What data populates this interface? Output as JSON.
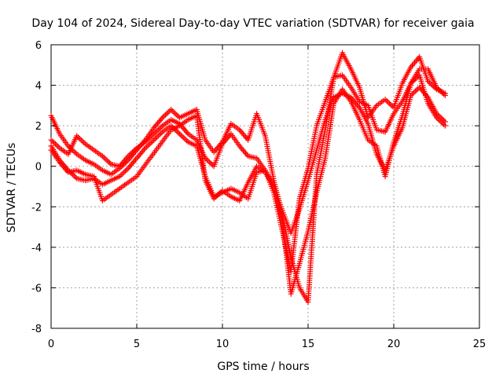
{
  "chart_data": {
    "type": "scatter",
    "title": "Day 104 of 2024, Sidereal Day-to-day VTEC variation (SDTVAR) for receiver gaia",
    "xlabel": "GPS time / hours",
    "ylabel": "SDTVAR / TECUs",
    "xlim": [
      0,
      25
    ],
    "ylim": [
      -8,
      6
    ],
    "x_ticks": [
      0,
      5,
      10,
      15,
      20,
      25
    ],
    "y_ticks": [
      -8,
      -6,
      -4,
      -2,
      0,
      2,
      4,
      6
    ],
    "x_tick_labels": [
      "0",
      "5",
      "10",
      "15",
      "20",
      "25"
    ],
    "y_tick_labels": [
      "-8",
      "-6",
      "-4",
      "-2",
      "0",
      "2",
      "4",
      "6"
    ],
    "grid": true,
    "marker": "+",
    "color": "#ff0000",
    "series": [
      {
        "x": [
          0.0,
          0.5,
          1.0,
          1.5,
          2.0,
          2.5,
          3.0,
          3.5,
          4.0,
          4.5,
          5.0,
          5.5,
          6.0,
          6.5,
          7.0,
          7.5,
          8.0,
          8.5,
          9.0,
          9.5,
          10.0,
          10.5,
          11.0,
          11.5,
          12.0,
          12.5,
          13.0,
          13.5,
          14.0,
          14.5,
          15.0,
          15.5,
          16.0,
          16.5,
          17.0,
          17.5,
          18.0,
          18.5,
          19.0,
          19.5,
          20.0,
          20.5,
          21.0,
          21.5,
          22.0,
          22.5,
          23.0
        ],
        "y": [
          2.5,
          1.6,
          1.0,
          0.6,
          0.3,
          0.1,
          -0.2,
          -0.4,
          -0.1,
          0.3,
          0.8,
          1.3,
          1.9,
          2.4,
          2.8,
          2.4,
          2.6,
          2.8,
          1.3,
          0.7,
          1.2,
          2.1,
          1.8,
          1.3,
          2.6,
          1.5,
          -0.7,
          -2.4,
          -4.5,
          -6.0,
          -6.7,
          -0.4,
          1.8,
          4.4,
          5.6,
          4.8,
          3.9,
          2.4,
          3.0,
          3.3,
          2.9,
          4.1,
          4.9,
          5.4,
          4.2,
          3.8,
          3.6
        ]
      },
      {
        "x": [
          0.0,
          0.5,
          1.0,
          1.5,
          2.0,
          2.5,
          3.0,
          3.5,
          4.0,
          4.5,
          5.0,
          5.5,
          6.0,
          6.5,
          7.0,
          7.5,
          8.0,
          8.5,
          9.0,
          9.5,
          10.0,
          10.5,
          11.0,
          11.5,
          12.0,
          12.5,
          13.0,
          13.5,
          14.0,
          14.5,
          15.0,
          15.5,
          16.0,
          16.5,
          17.0,
          17.5,
          18.0,
          18.5,
          19.0,
          19.5,
          20.0,
          20.5,
          21.0,
          21.5,
          22.0,
          22.5,
          23.0
        ],
        "y": [
          1.3,
          0.9,
          0.6,
          1.5,
          1.1,
          0.8,
          0.5,
          0.1,
          0.0,
          0.5,
          0.9,
          1.2,
          1.6,
          2.0,
          2.3,
          2.1,
          1.6,
          1.3,
          0.4,
          0.0,
          1.1,
          1.6,
          1.0,
          0.5,
          0.4,
          -0.2,
          -1.3,
          -3.2,
          -5.2,
          -1.6,
          -0.1,
          2.0,
          3.2,
          4.4,
          4.5,
          3.9,
          3.2,
          3.0,
          1.8,
          1.7,
          2.6,
          3.2,
          4.1,
          4.8,
          4.8,
          3.9,
          3.5
        ]
      },
      {
        "x": [
          0.0,
          0.5,
          1.0,
          1.5,
          2.0,
          2.5,
          3.0,
          3.5,
          4.0,
          4.5,
          5.0,
          5.5,
          6.0,
          6.5,
          7.0,
          7.5,
          8.0,
          8.5,
          9.0,
          9.5,
          10.0,
          10.5,
          11.0,
          11.5,
          12.0,
          12.5,
          13.0,
          13.5,
          14.0,
          14.5,
          15.0,
          15.5,
          16.0,
          16.5,
          17.0,
          17.5,
          18.0,
          18.5,
          19.0,
          19.5,
          20.0,
          20.5,
          21.0,
          21.5,
          22.0,
          22.5,
          23.0
        ],
        "y": [
          1.0,
          0.3,
          -0.2,
          -0.6,
          -0.7,
          -0.6,
          -0.9,
          -0.7,
          -0.5,
          -0.1,
          0.4,
          0.9,
          1.3,
          1.7,
          2.0,
          1.6,
          1.2,
          1.0,
          -0.5,
          -1.5,
          -1.3,
          -1.1,
          -1.3,
          -1.6,
          -0.3,
          -0.2,
          -1.0,
          -2.2,
          -3.3,
          -2.1,
          -0.7,
          0.8,
          2.3,
          3.4,
          3.6,
          3.4,
          2.9,
          2.1,
          0.6,
          -0.2,
          1.0,
          1.9,
          3.5,
          3.9,
          3.4,
          2.6,
          2.2
        ]
      },
      {
        "x": [
          0.0,
          0.5,
          1.0,
          1.5,
          2.0,
          2.5,
          3.0,
          3.5,
          4.0,
          4.5,
          5.0,
          7.0,
          7.5,
          8.0,
          8.5,
          9.0,
          9.5,
          10.0,
          10.5,
          11.0,
          11.5,
          12.0,
          12.5,
          13.0,
          13.5,
          14.0,
          14.5,
          15.0,
          15.5,
          16.0,
          16.5,
          17.0,
          17.5,
          18.0,
          18.5,
          19.0,
          19.5,
          20.0,
          20.5,
          21.0,
          21.5,
          22.0,
          22.5,
          23.0
        ],
        "y": [
          0.8,
          0.2,
          -0.3,
          -0.2,
          -0.4,
          -0.5,
          -1.7,
          -1.4,
          -1.1,
          -0.8,
          -0.5,
          1.8,
          2.0,
          2.3,
          2.5,
          -0.7,
          -1.6,
          -1.2,
          -1.5,
          -1.7,
          -0.8,
          0.0,
          -0.3,
          -1.0,
          -2.7,
          -6.3,
          -4.8,
          -3.2,
          -1.3,
          0.4,
          3.1,
          3.8,
          3.2,
          2.3,
          1.3,
          1.0,
          -0.5,
          1.2,
          2.5,
          4.1,
          4.5,
          3.1,
          2.4,
          2.0
        ]
      }
    ]
  }
}
